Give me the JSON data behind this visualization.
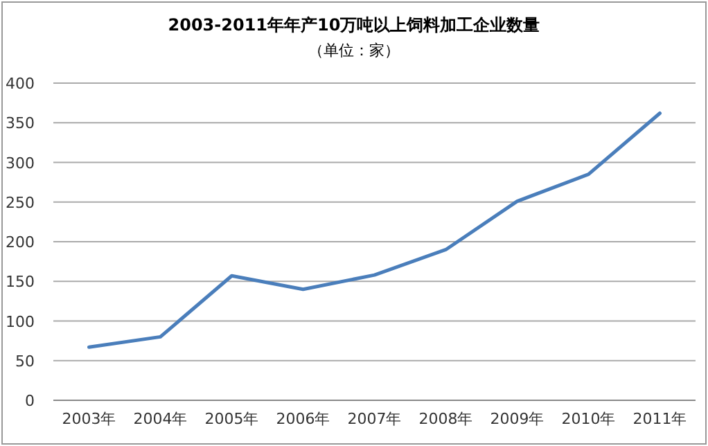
{
  "chart_data": {
    "type": "line",
    "title": "2003-2011年年产10万吨以上饲料加工企业数量",
    "subtitle": "（单位：家）",
    "categories": [
      "2003年",
      "2004年",
      "2005年",
      "2006年",
      "2007年",
      "2008年",
      "2009年",
      "2010年",
      "2011年"
    ],
    "series": [
      {
        "color": "#4a7ebb",
        "values": [
          67,
          80,
          157,
          140,
          158,
          190,
          251,
          285,
          362
        ]
      }
    ],
    "ylim": [
      0,
      400
    ],
    "yticks": [
      0,
      50,
      100,
      150,
      200,
      250,
      300,
      350,
      400
    ],
    "grid": "y",
    "marker": "none",
    "line_style": "solid"
  }
}
